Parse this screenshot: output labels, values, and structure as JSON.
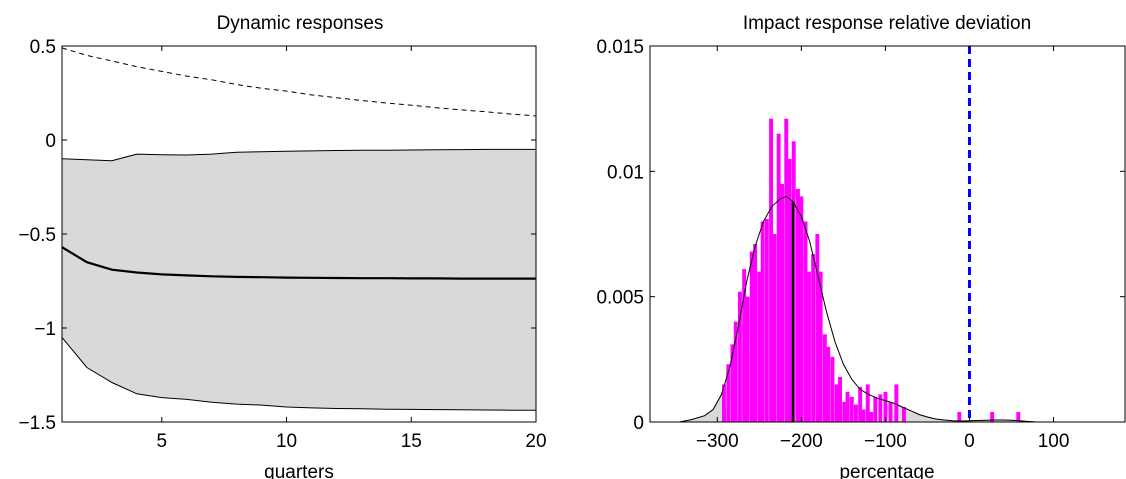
{
  "chart_data": [
    {
      "type": "area",
      "title": "Dynamic responses",
      "xlabel": "quarters",
      "ylabel": "",
      "xlim": [
        1,
        20
      ],
      "ylim": [
        -1.5,
        0.5
      ],
      "xticks": [
        5,
        10,
        15,
        20
      ],
      "yticks": [
        0.5,
        0,
        -0.5,
        -1,
        -1.5
      ],
      "ytick_labels": [
        "0.5",
        "0",
        "−0.5",
        "−1",
        "−1.5"
      ],
      "x": [
        1,
        2,
        3,
        4,
        5,
        6,
        7,
        8,
        9,
        10,
        11,
        12,
        13,
        14,
        15,
        16,
        17,
        18,
        19,
        20
      ],
      "series": [
        {
          "style": "band-upper",
          "values": [
            -0.1,
            -0.105,
            -0.11,
            -0.075,
            -0.078,
            -0.08,
            -0.075,
            -0.065,
            -0.062,
            -0.06,
            -0.058,
            -0.056,
            -0.055,
            -0.054,
            -0.053,
            -0.052,
            -0.051,
            -0.05,
            -0.05,
            -0.05
          ]
        },
        {
          "style": "band-lower",
          "values": [
            -1.05,
            -1.21,
            -1.29,
            -1.35,
            -1.37,
            -1.38,
            -1.395,
            -1.405,
            -1.41,
            -1.42,
            -1.425,
            -1.428,
            -1.43,
            -1.432,
            -1.433,
            -1.434,
            -1.435,
            -1.436,
            -1.437,
            -1.437
          ]
        },
        {
          "style": "median",
          "values": [
            -0.57,
            -0.65,
            -0.69,
            -0.705,
            -0.715,
            -0.72,
            -0.725,
            -0.728,
            -0.73,
            -0.732,
            -0.733,
            -0.734,
            -0.735,
            -0.735,
            -0.736,
            -0.736,
            -0.737,
            -0.737,
            -0.737,
            -0.737
          ]
        },
        {
          "style": "dashed",
          "values": [
            0.49,
            0.45,
            0.42,
            0.39,
            0.365,
            0.34,
            0.32,
            0.295,
            0.275,
            0.26,
            0.24,
            0.225,
            0.21,
            0.197,
            0.185,
            0.172,
            0.16,
            0.15,
            0.138,
            0.128
          ]
        }
      ],
      "colors": {
        "band": "#d9d9d9",
        "line": "#000000"
      }
    },
    {
      "type": "bar",
      "title": "Impact response relative deviation",
      "xlabel": "percentage",
      "ylabel": "",
      "xlim": [
        -380,
        185
      ],
      "ylim": [
        0,
        0.015
      ],
      "xticks": [
        -300,
        -200,
        -100,
        0,
        100
      ],
      "xtick_labels": [
        "−300",
        "−200",
        "−100",
        "0",
        "100"
      ],
      "yticks": [
        0,
        0.005,
        0.01,
        0.015
      ],
      "ytick_labels": [
        "0",
        "0.005",
        "0.01",
        "0.015"
      ],
      "histogram": {
        "bin_width": 4.6,
        "bins": [
          {
            "x": -292,
            "v": 0.0015
          },
          {
            "x": -287,
            "v": 0.0023
          },
          {
            "x": -282,
            "v": 0.0031
          },
          {
            "x": -278,
            "v": 0.004
          },
          {
            "x": -273,
            "v": 0.0052
          },
          {
            "x": -268,
            "v": 0.0061
          },
          {
            "x": -264,
            "v": 0.005
          },
          {
            "x": -259,
            "v": 0.0068
          },
          {
            "x": -255,
            "v": 0.0071
          },
          {
            "x": -250,
            "v": 0.006
          },
          {
            "x": -246,
            "v": 0.008
          },
          {
            "x": -241,
            "v": 0.0081
          },
          {
            "x": -236,
            "v": 0.0121
          },
          {
            "x": -232,
            "v": 0.0075
          },
          {
            "x": -227,
            "v": 0.0115
          },
          {
            "x": -223,
            "v": 0.0095
          },
          {
            "x": -218,
            "v": 0.0121
          },
          {
            "x": -214,
            "v": 0.0105
          },
          {
            "x": -209,
            "v": 0.0112
          },
          {
            "x": -204,
            "v": 0.0093
          },
          {
            "x": -200,
            "v": 0.009
          },
          {
            "x": -195,
            "v": 0.008
          },
          {
            "x": -191,
            "v": 0.006
          },
          {
            "x": -186,
            "v": 0.0067
          },
          {
            "x": -181,
            "v": 0.0075
          },
          {
            "x": -177,
            "v": 0.006
          },
          {
            "x": -172,
            "v": 0.0035
          },
          {
            "x": -168,
            "v": 0.003
          },
          {
            "x": -163,
            "v": 0.0026
          },
          {
            "x": -158,
            "v": 0.0015
          },
          {
            "x": -154,
            "v": 0.0018
          },
          {
            "x": -149,
            "v": 0.0008
          },
          {
            "x": -145,
            "v": 0.0012
          },
          {
            "x": -140,
            "v": 0.001
          },
          {
            "x": -135,
            "v": 0.0007
          },
          {
            "x": -130,
            "v": 0.0014
          },
          {
            "x": -126,
            "v": 0.0005
          },
          {
            "x": -121,
            "v": 0.0015
          },
          {
            "x": -117,
            "v": 0.0004
          },
          {
            "x": -112,
            "v": 0.001
          },
          {
            "x": -106,
            "v": 0.0011
          },
          {
            "x": -100,
            "v": 0.0012
          },
          {
            "x": -94,
            "v": 0.0008
          },
          {
            "x": -87,
            "v": 0.0015
          },
          {
            "x": -78,
            "v": 0.0006
          },
          {
            "x": -12,
            "v": 0.0004
          },
          {
            "x": 27,
            "v": 0.0004
          },
          {
            "x": 58,
            "v": 0.0004
          }
        ]
      },
      "density_x": [
        -345,
        -330,
        -315,
        -305,
        -295,
        -285,
        -275,
        -265,
        -255,
        -245,
        -235,
        -225,
        -218,
        -210,
        -200,
        -190,
        -180,
        -170,
        -160,
        -150,
        -140,
        -130,
        -120,
        -110,
        -100,
        -90,
        -80,
        -70,
        -60,
        -50,
        -40,
        -30,
        -20,
        -10,
        0,
        10,
        20,
        30,
        40,
        50,
        60,
        70,
        80
      ],
      "density_y": [
        0.0,
        0.0001,
        0.00025,
        0.0005,
        0.0011,
        0.0022,
        0.0038,
        0.0056,
        0.007,
        0.008,
        0.0086,
        0.0089,
        0.009,
        0.0088,
        0.0082,
        0.0072,
        0.0058,
        0.0044,
        0.0032,
        0.0023,
        0.0017,
        0.0013,
        0.0011,
        0.00095,
        0.00085,
        0.00075,
        0.0006,
        0.00045,
        0.0003,
        0.0002,
        0.00012,
        8e-05,
        5e-05,
        4e-05,
        5e-05,
        6e-05,
        7e-05,
        8e-05,
        8e-05,
        7e-05,
        5e-05,
        2e-05,
        0.0
      ],
      "shaded_tails": [
        [
          -345,
          -290
        ],
        [
          -95,
          80
        ]
      ],
      "median_x": -210,
      "reference_x": 0,
      "colors": {
        "bars": "#ff00ff",
        "density": "#000000",
        "tails": "#d9d9d9",
        "reference": "#0000ff"
      }
    }
  ]
}
